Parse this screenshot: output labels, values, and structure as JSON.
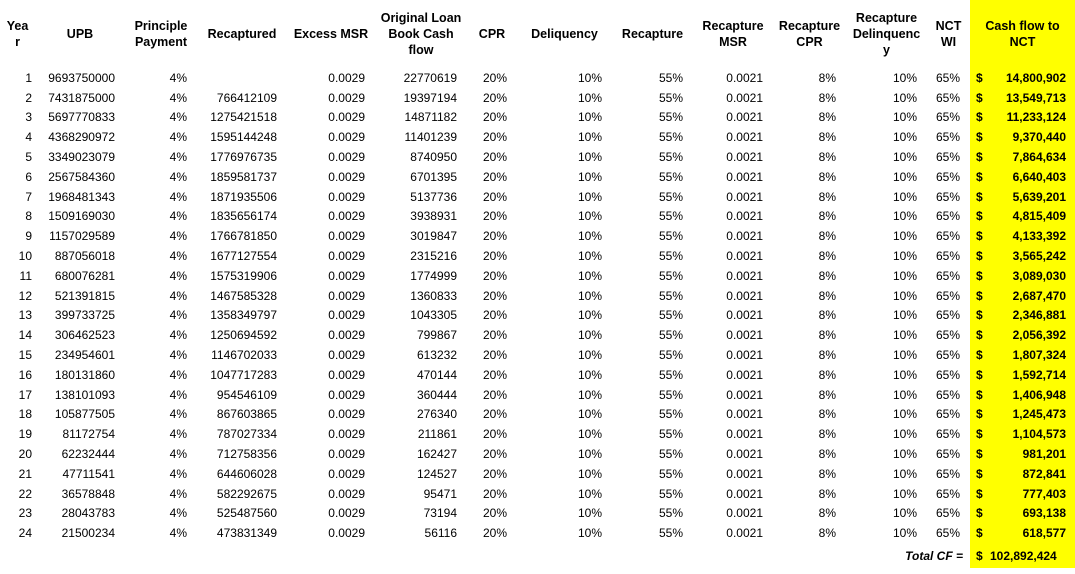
{
  "table": {
    "currency_symbol": "$",
    "highlight_color": "#FFFF00",
    "columns": [
      {
        "key": "year",
        "label": "Year"
      },
      {
        "key": "upb",
        "label": "UPB"
      },
      {
        "key": "principle_payment",
        "label": "Principle Payment"
      },
      {
        "key": "recaptured",
        "label": "Recaptured"
      },
      {
        "key": "excess_msr",
        "label": "Excess MSR"
      },
      {
        "key": "original_loan_book_cash_flow",
        "label": "Original Loan Book Cash flow"
      },
      {
        "key": "cpr",
        "label": "CPR"
      },
      {
        "key": "deliquency",
        "label": "Deliquency"
      },
      {
        "key": "recapture",
        "label": "Recapture"
      },
      {
        "key": "recapture_msr",
        "label": "Recapture MSR"
      },
      {
        "key": "recapture_cpr",
        "label": "Recapture CPR"
      },
      {
        "key": "recapture_delinquency",
        "label": "Recapture Delinquency"
      },
      {
        "key": "nct_wi",
        "label": "NCT WI"
      },
      {
        "key": "cash_flow_to_nct",
        "label": "Cash flow to NCT",
        "highlight": true
      }
    ],
    "rows": [
      [
        "1",
        "9693750000",
        "4%",
        "",
        "0.0029",
        "22770619",
        "20%",
        "10%",
        "55%",
        "0.0021",
        "8%",
        "10%",
        "65%",
        "14,800,902"
      ],
      [
        "2",
        "7431875000",
        "4%",
        "766412109",
        "0.0029",
        "19397194",
        "20%",
        "10%",
        "55%",
        "0.0021",
        "8%",
        "10%",
        "65%",
        "13,549,713"
      ],
      [
        "3",
        "5697770833",
        "4%",
        "1275421518",
        "0.0029",
        "14871182",
        "20%",
        "10%",
        "55%",
        "0.0021",
        "8%",
        "10%",
        "65%",
        "11,233,124"
      ],
      [
        "4",
        "4368290972",
        "4%",
        "1595144248",
        "0.0029",
        "11401239",
        "20%",
        "10%",
        "55%",
        "0.0021",
        "8%",
        "10%",
        "65%",
        "9,370,440"
      ],
      [
        "5",
        "3349023079",
        "4%",
        "1776976735",
        "0.0029",
        "8740950",
        "20%",
        "10%",
        "55%",
        "0.0021",
        "8%",
        "10%",
        "65%",
        "7,864,634"
      ],
      [
        "6",
        "2567584360",
        "4%",
        "1859581737",
        "0.0029",
        "6701395",
        "20%",
        "10%",
        "55%",
        "0.0021",
        "8%",
        "10%",
        "65%",
        "6,640,403"
      ],
      [
        "7",
        "1968481343",
        "4%",
        "1871935506",
        "0.0029",
        "5137736",
        "20%",
        "10%",
        "55%",
        "0.0021",
        "8%",
        "10%",
        "65%",
        "5,639,201"
      ],
      [
        "8",
        "1509169030",
        "4%",
        "1835656174",
        "0.0029",
        "3938931",
        "20%",
        "10%",
        "55%",
        "0.0021",
        "8%",
        "10%",
        "65%",
        "4,815,409"
      ],
      [
        "9",
        "1157029589",
        "4%",
        "1766781850",
        "0.0029",
        "3019847",
        "20%",
        "10%",
        "55%",
        "0.0021",
        "8%",
        "10%",
        "65%",
        "4,133,392"
      ],
      [
        "10",
        "887056018",
        "4%",
        "1677127554",
        "0.0029",
        "2315216",
        "20%",
        "10%",
        "55%",
        "0.0021",
        "8%",
        "10%",
        "65%",
        "3,565,242"
      ],
      [
        "11",
        "680076281",
        "4%",
        "1575319906",
        "0.0029",
        "1774999",
        "20%",
        "10%",
        "55%",
        "0.0021",
        "8%",
        "10%",
        "65%",
        "3,089,030"
      ],
      [
        "12",
        "521391815",
        "4%",
        "1467585328",
        "0.0029",
        "1360833",
        "20%",
        "10%",
        "55%",
        "0.0021",
        "8%",
        "10%",
        "65%",
        "2,687,470"
      ],
      [
        "13",
        "399733725",
        "4%",
        "1358349797",
        "0.0029",
        "1043305",
        "20%",
        "10%",
        "55%",
        "0.0021",
        "8%",
        "10%",
        "65%",
        "2,346,881"
      ],
      [
        "14",
        "306462523",
        "4%",
        "1250694592",
        "0.0029",
        "799867",
        "20%",
        "10%",
        "55%",
        "0.0021",
        "8%",
        "10%",
        "65%",
        "2,056,392"
      ],
      [
        "15",
        "234954601",
        "4%",
        "1146702033",
        "0.0029",
        "613232",
        "20%",
        "10%",
        "55%",
        "0.0021",
        "8%",
        "10%",
        "65%",
        "1,807,324"
      ],
      [
        "16",
        "180131860",
        "4%",
        "1047717283",
        "0.0029",
        "470144",
        "20%",
        "10%",
        "55%",
        "0.0021",
        "8%",
        "10%",
        "65%",
        "1,592,714"
      ],
      [
        "17",
        "138101093",
        "4%",
        "954546109",
        "0.0029",
        "360444",
        "20%",
        "10%",
        "55%",
        "0.0021",
        "8%",
        "10%",
        "65%",
        "1,406,948"
      ],
      [
        "18",
        "105877505",
        "4%",
        "867603865",
        "0.0029",
        "276340",
        "20%",
        "10%",
        "55%",
        "0.0021",
        "8%",
        "10%",
        "65%",
        "1,245,473"
      ],
      [
        "19",
        "81172754",
        "4%",
        "787027334",
        "0.0029",
        "211861",
        "20%",
        "10%",
        "55%",
        "0.0021",
        "8%",
        "10%",
        "65%",
        "1,104,573"
      ],
      [
        "20",
        "62232444",
        "4%",
        "712758356",
        "0.0029",
        "162427",
        "20%",
        "10%",
        "55%",
        "0.0021",
        "8%",
        "10%",
        "65%",
        "981,201"
      ],
      [
        "21",
        "47711541",
        "4%",
        "644606028",
        "0.0029",
        "124527",
        "20%",
        "10%",
        "55%",
        "0.0021",
        "8%",
        "10%",
        "65%",
        "872,841"
      ],
      [
        "22",
        "36578848",
        "4%",
        "582292675",
        "0.0029",
        "95471",
        "20%",
        "10%",
        "55%",
        "0.0021",
        "8%",
        "10%",
        "65%",
        "777,403"
      ],
      [
        "23",
        "28043783",
        "4%",
        "525487560",
        "0.0029",
        "73194",
        "20%",
        "10%",
        "55%",
        "0.0021",
        "8%",
        "10%",
        "65%",
        "693,138"
      ],
      [
        "24",
        "21500234",
        "4%",
        "473831349",
        "0.0029",
        "56116",
        "20%",
        "10%",
        "55%",
        "0.0021",
        "8%",
        "10%",
        "65%",
        "618,577"
      ]
    ],
    "total_label": "Total CF =",
    "total_value": "102,892,424"
  }
}
